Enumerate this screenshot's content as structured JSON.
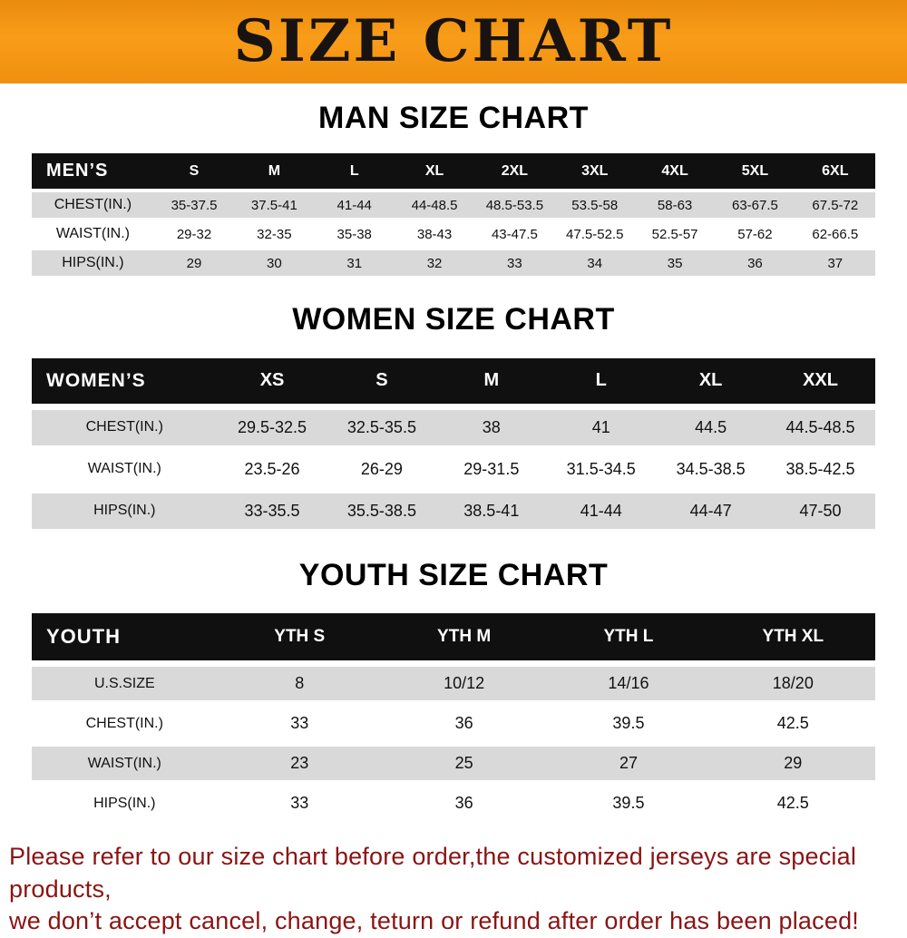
{
  "banner": {
    "title": "SIZE CHART"
  },
  "colors": {
    "banner_orange": "#f6921e",
    "table_header_black": "#101010",
    "row_gray": "#d9d9d9",
    "footer_red": "#8a1414"
  },
  "sections": [
    {
      "id": "men",
      "heading": "MAN SIZE CHART",
      "table": {
        "header": [
          "MEN’S",
          "S",
          "M",
          "L",
          "XL",
          "2XL",
          "3XL",
          "4XL",
          "5XL",
          "6XL"
        ],
        "rows": [
          {
            "label": "CHEST(IN.)",
            "values": [
              "35-37.5",
              "37.5-41",
              "41-44",
              "44-48.5",
              "48.5-53.5",
              "53.5-58",
              "58-63",
              "63-67.5",
              "67.5-72"
            ]
          },
          {
            "label": "WAIST(IN.)",
            "values": [
              "29-32",
              "32-35",
              "35-38",
              "38-43",
              "43-47.5",
              "47.5-52.5",
              "52.5-57",
              "57-62",
              "62-66.5"
            ]
          },
          {
            "label": "HIPS(IN.)",
            "values": [
              "29",
              "30",
              "31",
              "32",
              "33",
              "34",
              "35",
              "36",
              "37"
            ]
          }
        ]
      }
    },
    {
      "id": "women",
      "heading": "WOMEN SIZE CHART",
      "table": {
        "header": [
          "WOMEN’S",
          "XS",
          "S",
          "M",
          "L",
          "XL",
          "XXL"
        ],
        "rows": [
          {
            "label": "CHEST(IN.)",
            "values": [
              "29.5-32.5",
              "32.5-35.5",
              "38",
              "41",
              "44.5",
              "44.5-48.5"
            ]
          },
          {
            "label": "WAIST(IN.)",
            "values": [
              "23.5-26",
              "26-29",
              "29-31.5",
              "31.5-34.5",
              "34.5-38.5",
              "38.5-42.5"
            ]
          },
          {
            "label": "HIPS(IN.)",
            "values": [
              "33-35.5",
              "35.5-38.5",
              "38.5-41",
              "41-44",
              "44-47",
              "47-50"
            ]
          }
        ]
      }
    },
    {
      "id": "youth",
      "heading": "YOUTH SIZE CHART",
      "table": {
        "header": [
          "YOUTH",
          "YTH S",
          "YTH M",
          "YTH L",
          "YTH XL"
        ],
        "rows": [
          {
            "label": "U.S.SIZE",
            "values": [
              "8",
              "10/12",
              "14/16",
              "18/20"
            ]
          },
          {
            "label": "CHEST(IN.)",
            "values": [
              "33",
              "36",
              "39.5",
              "42.5"
            ]
          },
          {
            "label": "WAIST(IN.)",
            "values": [
              "23",
              "25",
              "27",
              "29"
            ]
          },
          {
            "label": "HIPS(IN.)",
            "values": [
              "33",
              "36",
              "39.5",
              "42.5"
            ]
          }
        ]
      }
    }
  ],
  "footer": {
    "line1": "Please refer to our size chart before order,the customized jerseys are special products,",
    "line2": "we don’t accept cancel, change, teturn or refund after order has been placed!"
  }
}
